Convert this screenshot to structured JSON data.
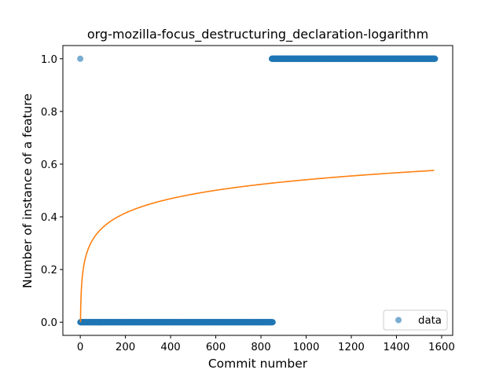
{
  "chart_data": {
    "type": "scatter",
    "title": "org-mozilla-focus_destructuring_declaration-logarithm",
    "xlabel": "Commit number",
    "ylabel": "Number of instance of a feature",
    "xlim": [
      -77,
      1649
    ],
    "ylim": [
      -0.05,
      1.05
    ],
    "xticks": [
      0,
      200,
      400,
      600,
      800,
      1000,
      1200,
      1400,
      1600
    ],
    "yticks": [
      0.0,
      0.2,
      0.4,
      0.6,
      0.8,
      1.0
    ],
    "xtick_labels": [
      "0",
      "200",
      "400",
      "600",
      "800",
      "1000",
      "1200",
      "1400",
      "1600"
    ],
    "ytick_labels": [
      "0.0",
      "0.2",
      "0.4",
      "0.6",
      "0.8",
      "1.0"
    ],
    "series": [
      {
        "name": "data",
        "kind": "scatter",
        "color": "#1f77b4",
        "alpha": 0.6,
        "segments": [
          {
            "x_start": 0,
            "x_end": 0,
            "y": 1.0
          },
          {
            "x_start": 0,
            "x_end": 852,
            "y": 0.0
          },
          {
            "x_start": 848,
            "x_end": 1571,
            "y": 1.0
          }
        ]
      },
      {
        "name": "fit",
        "kind": "line",
        "color": "#ff7f0e",
        "model": "logarithm",
        "x_start": 1,
        "x_end": 1567,
        "y_start": 0.0,
        "y_end": 0.576,
        "curvature_reference": {
          "x": 100,
          "y": 0.36
        }
      }
    ],
    "legend": {
      "position": "lower right",
      "entries": [
        "data"
      ]
    }
  }
}
